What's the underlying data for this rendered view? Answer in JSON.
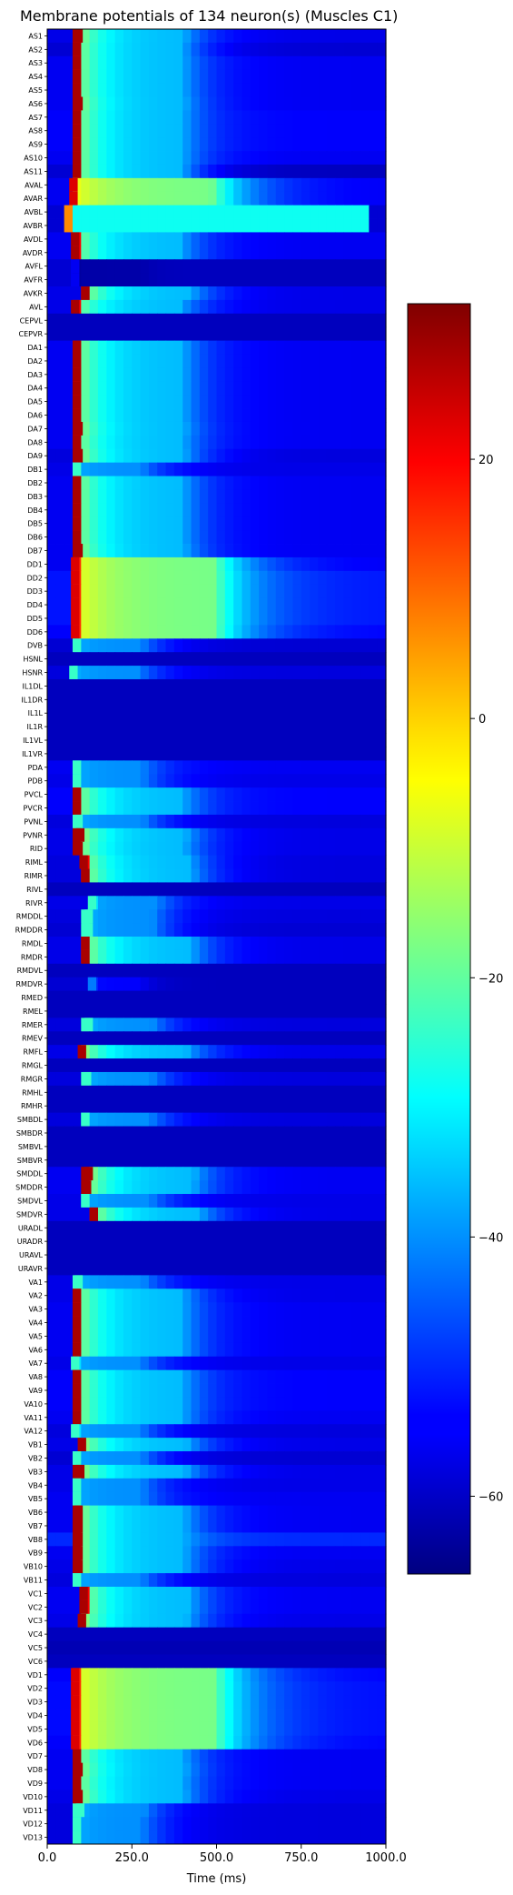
{
  "chart_data": {
    "type": "heatmap",
    "title": "Membrane potentials of 134 neuron(s) (Muscles C1)",
    "xlabel": "Time (ms)",
    "ylabel": "",
    "xlim": [
      0,
      1000
    ],
    "x_ticks": [
      0,
      250,
      500,
      750,
      1000
    ],
    "x_tick_labels": [
      "0.0",
      "250.0",
      "500.0",
      "750.0",
      "1000.0"
    ],
    "colorbar": {
      "colormap": "jet",
      "range": [
        -66,
        32
      ],
      "ticks": [
        20,
        0,
        -20,
        -40,
        -60
      ],
      "tick_labels": [
        "20",
        "0",
        "−20",
        "−40",
        "−60"
      ]
    },
    "rows": [
      {
        "name": "AS1",
        "pattern": "spike",
        "onset": 80,
        "base": -56
      },
      {
        "name": "AS2",
        "pattern": "spike",
        "onset": 75,
        "base": -58
      },
      {
        "name": "AS3",
        "pattern": "spike",
        "onset": 75,
        "base": -55
      },
      {
        "name": "AS4",
        "pattern": "spike",
        "onset": 75,
        "base": -55
      },
      {
        "name": "AS5",
        "pattern": "spike",
        "onset": 75,
        "base": -55
      },
      {
        "name": "AS6",
        "pattern": "spike",
        "onset": 80,
        "base": -55
      },
      {
        "name": "AS7",
        "pattern": "spike",
        "onset": 75,
        "base": -54
      },
      {
        "name": "AS8",
        "pattern": "spike",
        "onset": 75,
        "base": -54
      },
      {
        "name": "AS9",
        "pattern": "spike",
        "onset": 75,
        "base": -54
      },
      {
        "name": "AS10",
        "pattern": "spike",
        "onset": 75,
        "base": -55
      },
      {
        "name": "AS11",
        "pattern": "spike",
        "onset": 75,
        "base": -60
      },
      {
        "name": "AVAL",
        "pattern": "strong",
        "onset": 65,
        "base": -55
      },
      {
        "name": "AVAR",
        "pattern": "strong",
        "onset": 65,
        "base": -55
      },
      {
        "name": "AVBL",
        "pattern": "plateau",
        "onset": 55,
        "base": -28
      },
      {
        "name": "AVBR",
        "pattern": "plateau",
        "onset": 55,
        "base": -28
      },
      {
        "name": "AVDL",
        "pattern": "spike",
        "onset": 70,
        "base": -55
      },
      {
        "name": "AVDR",
        "pattern": "spike",
        "onset": 70,
        "base": -55
      },
      {
        "name": "AVFL",
        "pattern": "dark",
        "onset": 70,
        "base": -60
      },
      {
        "name": "AVFR",
        "pattern": "dark",
        "onset": 70,
        "base": -60
      },
      {
        "name": "AVKR",
        "pattern": "spike",
        "onset": 100,
        "base": -56
      },
      {
        "name": "AVL",
        "pattern": "spike",
        "onset": 70,
        "base": -56
      },
      {
        "name": "CEPVL",
        "pattern": "flat",
        "onset": 0,
        "base": -60
      },
      {
        "name": "CEPVR",
        "pattern": "flat",
        "onset": 0,
        "base": -60
      },
      {
        "name": "DA1",
        "pattern": "spike",
        "onset": 75,
        "base": -55
      },
      {
        "name": "DA2",
        "pattern": "spike",
        "onset": 75,
        "base": -55
      },
      {
        "name": "DA3",
        "pattern": "spike",
        "onset": 75,
        "base": -55
      },
      {
        "name": "DA4",
        "pattern": "spike",
        "onset": 75,
        "base": -55
      },
      {
        "name": "DA5",
        "pattern": "spike",
        "onset": 75,
        "base": -55
      },
      {
        "name": "DA6",
        "pattern": "spike",
        "onset": 75,
        "base": -55
      },
      {
        "name": "DA7",
        "pattern": "spike",
        "onset": 80,
        "base": -55
      },
      {
        "name": "DA8",
        "pattern": "spike",
        "onset": 75,
        "base": -55
      },
      {
        "name": "DA9",
        "pattern": "spike",
        "onset": 80,
        "base": -57
      },
      {
        "name": "DB1",
        "pattern": "weak",
        "onset": 75,
        "base": -56
      },
      {
        "name": "DB2",
        "pattern": "spike",
        "onset": 75,
        "base": -55
      },
      {
        "name": "DB3",
        "pattern": "spike",
        "onset": 75,
        "base": -55
      },
      {
        "name": "DB4",
        "pattern": "spike",
        "onset": 75,
        "base": -55
      },
      {
        "name": "DB5",
        "pattern": "spike",
        "onset": 75,
        "base": -55
      },
      {
        "name": "DB6",
        "pattern": "spike",
        "onset": 75,
        "base": -55
      },
      {
        "name": "DB7",
        "pattern": "spike",
        "onset": 80,
        "base": -55
      },
      {
        "name": "DD1",
        "pattern": "strong",
        "onset": 70,
        "base": -55
      },
      {
        "name": "DD2",
        "pattern": "strong",
        "onset": 70,
        "base": -52
      },
      {
        "name": "DD3",
        "pattern": "strong",
        "onset": 70,
        "base": -52
      },
      {
        "name": "DD4",
        "pattern": "strong",
        "onset": 70,
        "base": -52
      },
      {
        "name": "DD5",
        "pattern": "strong",
        "onset": 70,
        "base": -52
      },
      {
        "name": "DD6",
        "pattern": "strong",
        "onset": 70,
        "base": -54
      },
      {
        "name": "DVB",
        "pattern": "weak",
        "onset": 75,
        "base": -58
      },
      {
        "name": "HSNL",
        "pattern": "flat",
        "onset": 0,
        "base": -60
      },
      {
        "name": "HSNR",
        "pattern": "weak",
        "onset": 65,
        "base": -57
      },
      {
        "name": "IL1DL",
        "pattern": "flat",
        "onset": 0,
        "base": -60
      },
      {
        "name": "IL1DR",
        "pattern": "flat",
        "onset": 0,
        "base": -60
      },
      {
        "name": "IL1L",
        "pattern": "flat",
        "onset": 0,
        "base": -60
      },
      {
        "name": "IL1R",
        "pattern": "flat",
        "onset": 0,
        "base": -60
      },
      {
        "name": "IL1VL",
        "pattern": "flat",
        "onset": 0,
        "base": -60
      },
      {
        "name": "IL1VR",
        "pattern": "flat",
        "onset": 0,
        "base": -60
      },
      {
        "name": "PDA",
        "pattern": "weak",
        "onset": 75,
        "base": -55
      },
      {
        "name": "PDB",
        "pattern": "weak",
        "onset": 75,
        "base": -56
      },
      {
        "name": "PVCL",
        "pattern": "spike",
        "onset": 75,
        "base": -54
      },
      {
        "name": "PVCR",
        "pattern": "spike",
        "onset": 75,
        "base": -54
      },
      {
        "name": "PVNL",
        "pattern": "weak",
        "onset": 80,
        "base": -57
      },
      {
        "name": "PVNR",
        "pattern": "spike",
        "onset": 85,
        "base": -56
      },
      {
        "name": "RID",
        "pattern": "spike",
        "onset": 80,
        "base": -56
      },
      {
        "name": "RIML",
        "pattern": "spike",
        "onset": 95,
        "base": -57
      },
      {
        "name": "RIMR",
        "pattern": "spike",
        "onset": 100,
        "base": -57
      },
      {
        "name": "RIVL",
        "pattern": "flat",
        "onset": 0,
        "base": -60
      },
      {
        "name": "RIVR",
        "pattern": "weak",
        "onset": 120,
        "base": -56
      },
      {
        "name": "RMDDL",
        "pattern": "weak",
        "onset": 110,
        "base": -57
      },
      {
        "name": "RMDDR",
        "pattern": "weak",
        "onset": 110,
        "base": -58
      },
      {
        "name": "RMDL",
        "pattern": "spike",
        "onset": 100,
        "base": -56
      },
      {
        "name": "RMDR",
        "pattern": "spike",
        "onset": 100,
        "base": -56
      },
      {
        "name": "RMDVL",
        "pattern": "flat",
        "onset": 0,
        "base": -60
      },
      {
        "name": "RMDVR",
        "pattern": "faint",
        "onset": 120,
        "base": -60
      },
      {
        "name": "RMED",
        "pattern": "flat",
        "onset": 0,
        "base": -60
      },
      {
        "name": "RMEL",
        "pattern": "flat",
        "onset": 0,
        "base": -60
      },
      {
        "name": "RMER",
        "pattern": "weak",
        "onset": 110,
        "base": -57
      },
      {
        "name": "RMEV",
        "pattern": "flat",
        "onset": 0,
        "base": -60
      },
      {
        "name": "RMFL",
        "pattern": "spike",
        "onset": 90,
        "base": -56
      },
      {
        "name": "RMGL",
        "pattern": "flat",
        "onset": 0,
        "base": -60
      },
      {
        "name": "RMGR",
        "pattern": "weak",
        "onset": 105,
        "base": -57
      },
      {
        "name": "RMHL",
        "pattern": "flat",
        "onset": 0,
        "base": -60
      },
      {
        "name": "RMHR",
        "pattern": "flat",
        "onset": 0,
        "base": -60
      },
      {
        "name": "SMBDL",
        "pattern": "weak",
        "onset": 100,
        "base": -57
      },
      {
        "name": "SMBDR",
        "pattern": "flat",
        "onset": 0,
        "base": -60
      },
      {
        "name": "SMBVL",
        "pattern": "flat",
        "onset": 0,
        "base": -60
      },
      {
        "name": "SMBVR",
        "pattern": "flat",
        "onset": 0,
        "base": -60
      },
      {
        "name": "SMDDL",
        "pattern": "spike",
        "onset": 110,
        "base": -55
      },
      {
        "name": "SMDDR",
        "pattern": "spike",
        "onset": 105,
        "base": -55
      },
      {
        "name": "SMDVL",
        "pattern": "weak",
        "onset": 100,
        "base": -56
      },
      {
        "name": "SMDVR",
        "pattern": "spike",
        "onset": 125,
        "base": -56
      },
      {
        "name": "URADL",
        "pattern": "flat",
        "onset": 0,
        "base": -60
      },
      {
        "name": "URADR",
        "pattern": "flat",
        "onset": 0,
        "base": -60
      },
      {
        "name": "URAVL",
        "pattern": "flat",
        "onset": 0,
        "base": -60
      },
      {
        "name": "URAVR",
        "pattern": "flat",
        "onset": 0,
        "base": -60
      },
      {
        "name": "VA1",
        "pattern": "weak",
        "onset": 80,
        "base": -56
      },
      {
        "name": "VA2",
        "pattern": "spike",
        "onset": 75,
        "base": -56
      },
      {
        "name": "VA3",
        "pattern": "spike",
        "onset": 75,
        "base": -55
      },
      {
        "name": "VA4",
        "pattern": "spike",
        "onset": 75,
        "base": -55
      },
      {
        "name": "VA5",
        "pattern": "spike",
        "onset": 75,
        "base": -55
      },
      {
        "name": "VA6",
        "pattern": "spike",
        "onset": 75,
        "base": -55
      },
      {
        "name": "VA7",
        "pattern": "weak",
        "onset": 70,
        "base": -56
      },
      {
        "name": "VA8",
        "pattern": "spike",
        "onset": 75,
        "base": -54
      },
      {
        "name": "VA9",
        "pattern": "spike",
        "onset": 75,
        "base": -54
      },
      {
        "name": "VA10",
        "pattern": "spike",
        "onset": 75,
        "base": -54
      },
      {
        "name": "VA11",
        "pattern": "spike",
        "onset": 75,
        "base": -55
      },
      {
        "name": "VA12",
        "pattern": "weak",
        "onset": 70,
        "base": -57
      },
      {
        "name": "VB1",
        "pattern": "spike",
        "onset": 90,
        "base": -56
      },
      {
        "name": "VB2",
        "pattern": "weak",
        "onset": 75,
        "base": -58
      },
      {
        "name": "VB3",
        "pattern": "spike",
        "onset": 85,
        "base": -56
      },
      {
        "name": "VB4",
        "pattern": "weak",
        "onset": 75,
        "base": -56
      },
      {
        "name": "VB5",
        "pattern": "weak",
        "onset": 75,
        "base": -55
      },
      {
        "name": "VB6",
        "pattern": "spike",
        "onset": 80,
        "base": -55
      },
      {
        "name": "VB7",
        "pattern": "spike",
        "onset": 80,
        "base": -55
      },
      {
        "name": "VB8",
        "pattern": "spike",
        "onset": 80,
        "base": -50
      },
      {
        "name": "VB9",
        "pattern": "spike",
        "onset": 80,
        "base": -55
      },
      {
        "name": "VB10",
        "pattern": "spike",
        "onset": 80,
        "base": -56
      },
      {
        "name": "VB11",
        "pattern": "weak",
        "onset": 75,
        "base": -57
      },
      {
        "name": "VC1",
        "pattern": "spike",
        "onset": 95,
        "base": -55
      },
      {
        "name": "VC2",
        "pattern": "spike",
        "onset": 95,
        "base": -55
      },
      {
        "name": "VC3",
        "pattern": "spike",
        "onset": 90,
        "base": -56
      },
      {
        "name": "VC4",
        "pattern": "flat",
        "onset": 0,
        "base": -60
      },
      {
        "name": "VC5",
        "pattern": "flat",
        "onset": 0,
        "base": -61
      },
      {
        "name": "VC6",
        "pattern": "flat",
        "onset": 0,
        "base": -60
      },
      {
        "name": "VD1",
        "pattern": "strong",
        "onset": 70,
        "base": -54
      },
      {
        "name": "VD2",
        "pattern": "strong",
        "onset": 70,
        "base": -53
      },
      {
        "name": "VD3",
        "pattern": "strong",
        "onset": 70,
        "base": -53
      },
      {
        "name": "VD4",
        "pattern": "strong",
        "onset": 70,
        "base": -53
      },
      {
        "name": "VD5",
        "pattern": "strong",
        "onset": 70,
        "base": -53
      },
      {
        "name": "VD6",
        "pattern": "strong",
        "onset": 70,
        "base": -54
      },
      {
        "name": "VD7",
        "pattern": "spike",
        "onset": 75,
        "base": -55
      },
      {
        "name": "VD8",
        "pattern": "spike",
        "onset": 80,
        "base": -55
      },
      {
        "name": "VD9",
        "pattern": "spike",
        "onset": 75,
        "base": -55
      },
      {
        "name": "VD10",
        "pattern": "spike",
        "onset": 80,
        "base": -56
      },
      {
        "name": "VD11",
        "pattern": "weak",
        "onset": 85,
        "base": -57
      },
      {
        "name": "VD12",
        "pattern": "weak",
        "onset": 75,
        "base": -57
      },
      {
        "name": "VD13",
        "pattern": "weak",
        "onset": 75,
        "base": -57
      }
    ]
  }
}
